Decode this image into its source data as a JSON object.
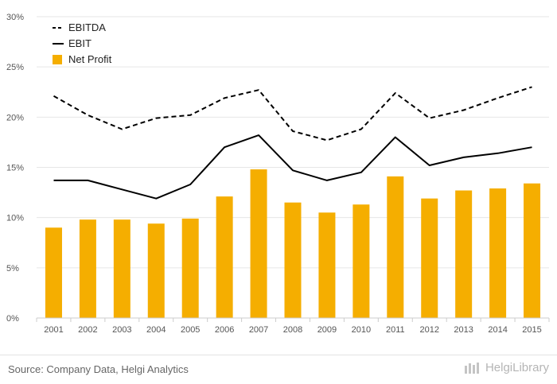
{
  "chart_data": {
    "type": "bar",
    "categories": [
      "2001",
      "2002",
      "2003",
      "2004",
      "2005",
      "2006",
      "2007",
      "2008",
      "2009",
      "2010",
      "2011",
      "2012",
      "2013",
      "2014",
      "2015"
    ],
    "series": [
      {
        "name": "EBITDA",
        "kind": "line",
        "style": "dashed",
        "color": "#000000",
        "values": [
          22.1,
          20.2,
          18.8,
          19.9,
          20.2,
          21.9,
          22.7,
          18.6,
          17.7,
          18.8,
          22.4,
          19.9,
          20.7,
          21.9,
          23.0
        ]
      },
      {
        "name": "EBIT",
        "kind": "line",
        "style": "solid",
        "color": "#000000",
        "values": [
          13.7,
          13.7,
          12.8,
          11.9,
          13.3,
          17.0,
          18.2,
          14.7,
          13.7,
          14.5,
          18.0,
          15.2,
          16.0,
          16.4,
          17.0
        ]
      },
      {
        "name": "Net Profit",
        "kind": "bar",
        "color": "#f5ae00",
        "values": [
          9.0,
          9.8,
          9.8,
          9.4,
          9.9,
          12.1,
          14.8,
          11.5,
          10.5,
          11.3,
          14.1,
          11.9,
          12.7,
          12.9,
          13.4
        ]
      }
    ],
    "yticks": [
      "0%",
      "5%",
      "10%",
      "15%",
      "20%",
      "25%",
      "30%"
    ],
    "ylim": [
      0,
      30
    ],
    "grid": true,
    "legend": "top-left"
  },
  "footer": {
    "source": "Source: Company Data, Helgi Analytics",
    "brand": "HelgiLibrary"
  }
}
